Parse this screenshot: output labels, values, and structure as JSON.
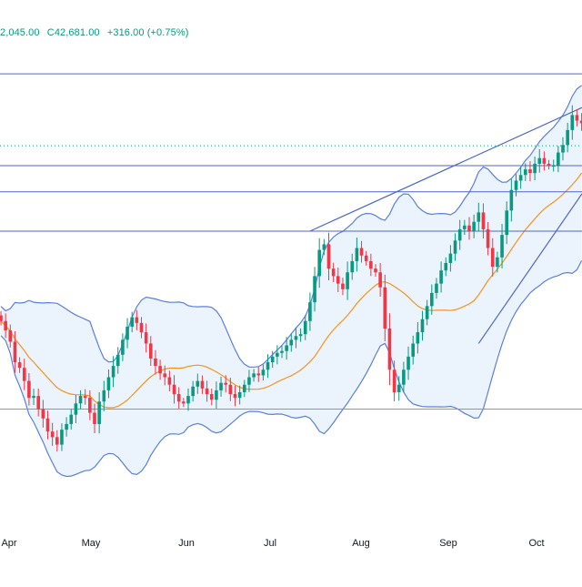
{
  "legend": {
    "open_partial": "2,045.00",
    "close": "C42,681.00",
    "change": "+316.00 (+0.75%)"
  },
  "colors": {
    "up": "#089981",
    "down": "#f23645",
    "band": "#5b7fe0",
    "band_fill": "#e6f0fb",
    "basis": "#f7931a",
    "hline": "#4c67c9",
    "support": "#e57373",
    "trendline": "#4c67c9"
  },
  "chart_data": {
    "type": "candlestick",
    "x_labels": [
      "Apr",
      "May",
      "Jun",
      "Jul",
      "Aug",
      "Sep",
      "Oct"
    ],
    "y_range": [
      32000,
      45000
    ],
    "horizontal_levels": [
      44000,
      41550,
      40850,
      39800,
      35050
    ],
    "support_level": 35050,
    "dotted_level": 42081,
    "trend_channel": {
      "upper": [
        [
          66,
          39800
        ],
        [
          146,
          43100
        ]
      ],
      "lower": [
        [
          102,
          36800
        ],
        [
          157,
          40800
        ]
      ]
    },
    "series": [
      {
        "name": "price",
        "values": [
          37400,
          37150,
          36850,
          36300,
          36150,
          35800,
          35350,
          35400,
          35050,
          34800,
          34450,
          34300,
          34100,
          34500,
          34650,
          34900,
          35200,
          35400,
          35350,
          34950,
          34650,
          35250,
          35550,
          35900,
          36200,
          36500,
          36900,
          37250,
          37500,
          37350,
          37100,
          36800,
          36400,
          36200,
          36000,
          35900,
          35700,
          35450,
          35250,
          35200,
          35400,
          35650,
          35800,
          35600,
          35450,
          35300,
          35550,
          35750,
          35700,
          35450,
          35350,
          35500,
          35700,
          35900,
          36000,
          35950,
          36100,
          36300,
          36450,
          36550,
          36600,
          36750,
          36900,
          37000,
          37050,
          37400,
          37900,
          38600,
          39300,
          39450,
          38800,
          38600,
          38400,
          38250,
          38700,
          39000,
          39350,
          39150,
          39000,
          38800,
          38700,
          38300,
          37200,
          36100,
          35500,
          35700,
          36100,
          36450,
          36800,
          37100,
          37450,
          37800,
          38150,
          38400,
          38750,
          38950,
          39200,
          39550,
          39850,
          39950,
          39800,
          40050,
          40300,
          39850,
          39350,
          38850,
          39100,
          39700,
          40350,
          40900,
          41150,
          41300,
          41450,
          41350,
          41600,
          41750,
          41600,
          41550,
          41550,
          41900,
          42100,
          42500,
          42900,
          42750,
          42681
        ]
      }
    ]
  }
}
